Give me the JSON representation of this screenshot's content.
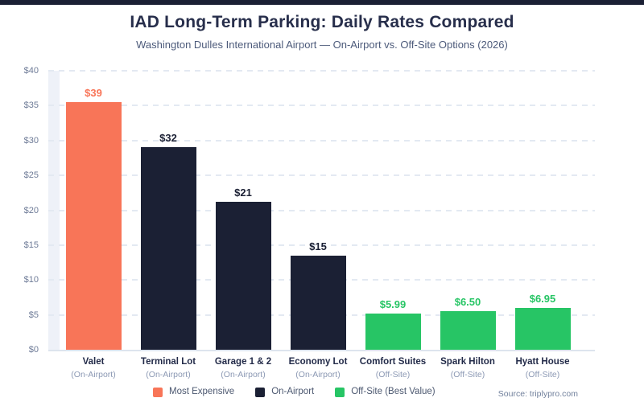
{
  "header": {
    "title": "IAD Long-Term Parking: Daily Rates Compared",
    "subtitle": "Washington Dulles International Airport — On-Airport vs. Off-Site Options (2026)"
  },
  "colors": {
    "top_strip": "#1B2034",
    "most_expensive": "#F87558",
    "on_airport": "#1B2034",
    "off_site": "#27C565",
    "gridline": "#E3E9F2",
    "axis_text": "#6E7B97"
  },
  "chart_data": {
    "type": "bar",
    "title": "IAD Long-Term Parking: Daily Rates Compared",
    "subtitle": "Washington Dulles International Airport — On-Airport vs. Off-Site Options (2026)",
    "xlabel": "",
    "ylabel": "",
    "ylim": [
      0,
      40
    ],
    "ytick_interval": 5,
    "yticks": [
      "$0",
      "$5",
      "$10",
      "$15",
      "$20",
      "$25",
      "$30",
      "$35",
      "$40"
    ],
    "grid": "horizontal-dashed",
    "legend_position": "bottom",
    "categories": [
      "Valet",
      "Terminal Lot",
      "Garage 1 & 2",
      "Economy Lot",
      "Comfort Suites",
      "Spark Hilton",
      "Hyatt House"
    ],
    "bars": [
      {
        "label": "Valet",
        "sublabel": "(On-Airport)",
        "value": 39,
        "value_label": "$39",
        "display_value": 35.5,
        "group": "most-expensive",
        "color": "#F87558"
      },
      {
        "label": "Terminal Lot",
        "sublabel": "(On-Airport)",
        "value": 32,
        "value_label": "$32",
        "display_value": 29.1,
        "group": "on-airport",
        "color": "#1B2034"
      },
      {
        "label": "Garage 1 & 2",
        "sublabel": "(On-Airport)",
        "value": 21,
        "value_label": "$21",
        "display_value": 21.2,
        "group": "on-airport",
        "color": "#1B2034"
      },
      {
        "label": "Economy Lot",
        "sublabel": "(On-Airport)",
        "value": 15,
        "value_label": "$15",
        "display_value": 13.5,
        "group": "on-airport",
        "color": "#1B2034"
      },
      {
        "label": "Comfort Suites",
        "sublabel": "(Off-Site)",
        "value": 5.99,
        "value_label": "$5.99",
        "display_value": 5.2,
        "group": "off-site",
        "color": "#27C565"
      },
      {
        "label": "Spark Hilton",
        "sublabel": "(Off-Site)",
        "value": 6.5,
        "value_label": "$6.50",
        "display_value": 5.55,
        "group": "off-site",
        "color": "#27C565"
      },
      {
        "label": "Hyatt House",
        "sublabel": "(Off-Site)",
        "value": 6.95,
        "value_label": "$6.95",
        "display_value": 6.0,
        "group": "off-site",
        "color": "#27C565"
      }
    ],
    "legend": [
      {
        "label": "Most Expensive",
        "color": "#F87558"
      },
      {
        "label": "On-Airport",
        "color": "#1B2034"
      },
      {
        "label": "Off-Site (Best Value)",
        "color": "#27C565"
      }
    ]
  },
  "footer": {
    "source": "Source: triplypro.com"
  }
}
